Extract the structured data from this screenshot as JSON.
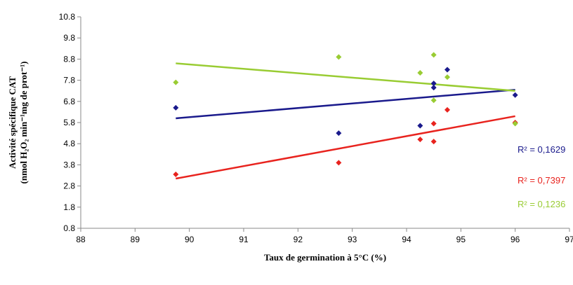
{
  "chart_data": {
    "type": "scatter",
    "title": "",
    "xlabel": "Taux de germination à 5°C (%)",
    "ylabel_line1": "Activité spécifique CAT",
    "ylabel_line2": "(nmol H₂O₂ min⁻¹mg de prot⁻¹)",
    "xlim": [
      88,
      97
    ],
    "ylim": [
      0.8,
      10.8
    ],
    "x_ticks": [
      "88",
      "89",
      "90",
      "91",
      "92",
      "93",
      "94",
      "95",
      "96",
      "97"
    ],
    "y_ticks": [
      "0.8",
      "1.8",
      "2.8",
      "3.8",
      "4.8",
      "5.8",
      "6.8",
      "7.8",
      "8.8",
      "9.8",
      "10.8"
    ],
    "grid": false,
    "series": [
      {
        "color": "#1a1a8c",
        "points": [
          [
            89.75,
            6.5
          ],
          [
            92.75,
            5.3
          ],
          [
            94.25,
            5.65
          ],
          [
            94.5,
            7.65
          ],
          [
            94.5,
            7.45
          ],
          [
            94.75,
            8.3
          ],
          [
            96.0,
            7.1
          ]
        ],
        "trend": [
          [
            89.75,
            6.0
          ],
          [
            96.0,
            7.35
          ]
        ],
        "r2_label": "R² = 0,1629"
      },
      {
        "color": "#e8231e",
        "points": [
          [
            89.75,
            3.35
          ],
          [
            92.75,
            3.9
          ],
          [
            94.25,
            5.0
          ],
          [
            94.5,
            4.9
          ],
          [
            94.5,
            5.75
          ],
          [
            94.75,
            6.4
          ],
          [
            96.0,
            5.8
          ]
        ],
        "trend": [
          [
            89.75,
            3.15
          ],
          [
            96.0,
            6.1
          ]
        ],
        "r2_label": "R² = 0,7397"
      },
      {
        "color": "#99cc33",
        "points": [
          [
            89.75,
            7.7
          ],
          [
            92.75,
            8.9
          ],
          [
            94.25,
            8.15
          ],
          [
            94.5,
            9.0
          ],
          [
            94.5,
            6.85
          ],
          [
            94.75,
            7.95
          ],
          [
            96.0,
            5.75
          ]
        ],
        "trend": [
          [
            89.75,
            8.6
          ],
          [
            96.0,
            7.3
          ]
        ],
        "r2_label": "R² = 0,1236"
      }
    ]
  }
}
